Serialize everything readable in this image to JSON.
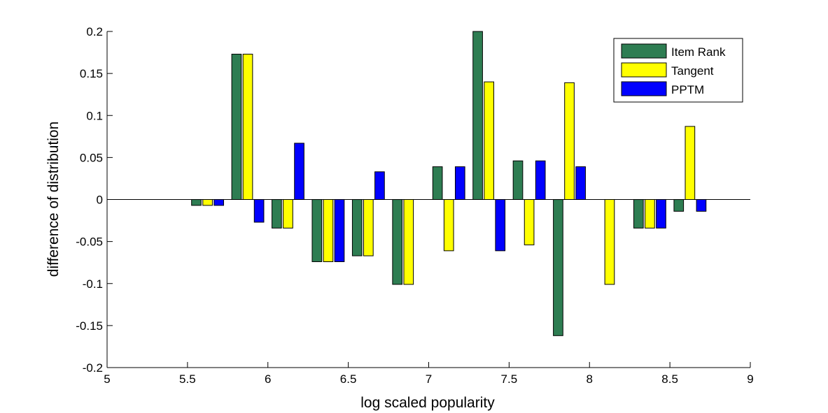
{
  "chart_data": {
    "type": "bar",
    "xlabel": "log scaled popularity",
    "ylabel": "difference of distribution",
    "xlim": [
      5,
      9
    ],
    "ylim": [
      -0.2,
      0.2
    ],
    "xticks": [
      "5",
      "5.5",
      "6",
      "6.5",
      "7",
      "7.5",
      "8",
      "8.5",
      "9"
    ],
    "yticks": [
      "-0.2",
      "-0.15",
      "-0.1",
      "-0.05",
      "0",
      "0.05",
      "0.1",
      "0.15",
      "0.2"
    ],
    "legend_position": "top-right",
    "grid": false,
    "x": [
      5.625,
      5.875,
      6.125,
      6.375,
      6.625,
      6.875,
      7.125,
      7.375,
      7.625,
      7.875,
      8.125,
      8.375,
      8.625
    ],
    "series": [
      {
        "name": "Item Rank",
        "color": "#2e7d52",
        "values": [
          -0.007,
          0.173,
          -0.034,
          -0.074,
          -0.067,
          -0.101,
          0.039,
          0.2,
          0.046,
          -0.162,
          0.0,
          -0.034,
          -0.014
        ]
      },
      {
        "name": "Tangent",
        "color": "#ffff00",
        "values": [
          -0.007,
          0.173,
          -0.034,
          -0.074,
          -0.067,
          -0.101,
          -0.061,
          0.14,
          -0.054,
          0.139,
          -0.101,
          -0.034,
          0.087
        ]
      },
      {
        "name": "PPTM",
        "color": "#0000ff",
        "values": [
          -0.007,
          -0.027,
          0.067,
          -0.074,
          0.033,
          0.0,
          0.039,
          -0.061,
          0.046,
          0.039,
          0.0,
          -0.034,
          -0.014
        ]
      }
    ]
  }
}
